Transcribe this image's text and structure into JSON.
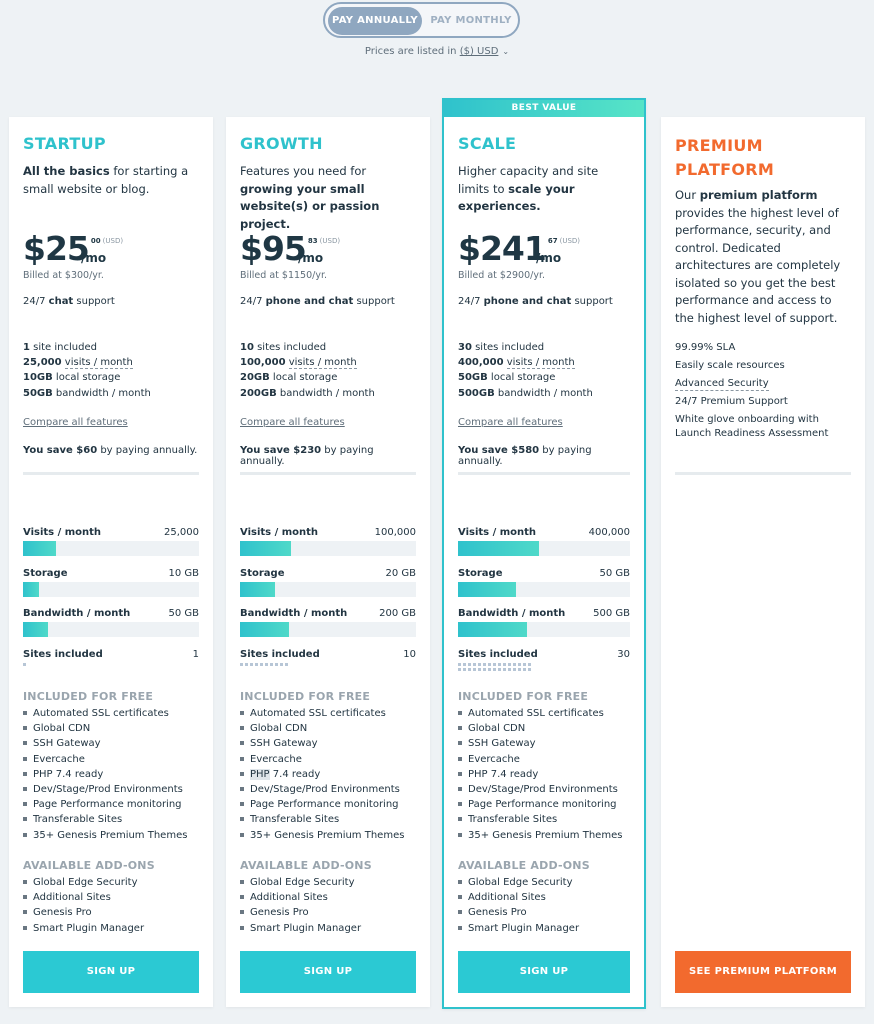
{
  "billing": {
    "annual_label": "PAY ANNUALLY",
    "monthly_label": "PAY MONTHLY",
    "currency_prefix": "Prices are listed in ",
    "currency_link": "($) USD"
  },
  "plans": [
    {
      "name": "STARTUP",
      "desc_bold_start": "All the basics",
      "desc_rest": " for starting a small website or blog.",
      "price_dollars": "$25",
      "price_cents": "00",
      "price_currency": "(USD)",
      "price_period": "/mo",
      "billed": "Billed at $300/yr.",
      "support_pre": "24/7 ",
      "support_bold": "chat",
      "support_post": " support",
      "sites_num": "1",
      "sites_text": " site included",
      "visits_num": "25,000",
      "visits_text": "visits / month",
      "storage_num": "10GB",
      "storage_text": " local storage",
      "bandwidth_num": "50GB",
      "bandwidth_text": " bandwidth / month",
      "compare": "Compare all features",
      "save_bold": "You save $60",
      "save_rest": " by paying annually.",
      "metrics": {
        "visits_label": "Visits / month",
        "visits_value": "25,000",
        "visits_fill": 0.19,
        "storage_label": "Storage",
        "storage_value": "10 GB",
        "storage_fill": 0.09,
        "bandwidth_label": "Bandwidth / month",
        "bandwidth_value": "50 GB",
        "bandwidth_fill": 0.14,
        "sites_label": "Sites included",
        "sites_value": "1",
        "sites_count": 1
      },
      "free_title": "INCLUDED FOR FREE",
      "free_items": [
        "Automated SSL certificates",
        "Global CDN",
        "SSH Gateway",
        "Evercache",
        "PHP 7.4 ready",
        "Dev/Stage/Prod Environments",
        "Page Performance monitoring",
        "Transferable Sites",
        "35+ Genesis Premium Themes"
      ],
      "addons_title": "AVAILABLE ADD-ONS",
      "addon_items": [
        "Global Edge Security",
        "Additional Sites",
        "Genesis Pro",
        "Smart Plugin Manager"
      ],
      "cta": "SIGN UP"
    },
    {
      "name": "GROWTH",
      "desc_pre": "Features you need for ",
      "desc_bold": "growing your small website(s) or passion project.",
      "price_dollars": "$95",
      "price_cents": "83",
      "price_currency": "(USD)",
      "price_period": "/mo",
      "billed": "Billed at $1150/yr.",
      "support_pre": "24/7 ",
      "support_bold": "phone and chat",
      "support_post": " support",
      "sites_num": "10",
      "sites_text": " sites included",
      "visits_num": "100,000",
      "visits_text": "visits / month",
      "storage_num": "20GB",
      "storage_text": " local storage",
      "bandwidth_num": "200GB",
      "bandwidth_text": " bandwidth / month",
      "compare": "Compare all features",
      "save_bold": "You save $230",
      "save_rest": " by paying annually.",
      "metrics": {
        "visits_label": "Visits / month",
        "visits_value": "100,000",
        "visits_fill": 0.29,
        "storage_label": "Storage",
        "storage_value": "20 GB",
        "storage_fill": 0.2,
        "bandwidth_label": "Bandwidth / month",
        "bandwidth_value": "200 GB",
        "bandwidth_fill": 0.28,
        "sites_label": "Sites included",
        "sites_value": "10",
        "sites_count": 10
      },
      "free_title": "INCLUDED FOR FREE",
      "free_items": [
        "Automated SSL certificates",
        "Global CDN",
        "SSH Gateway",
        "Evercache",
        "PHP 7.4 ready",
        "Dev/Stage/Prod Environments",
        "Page Performance monitoring",
        "Transferable Sites",
        "35+ Genesis Premium Themes"
      ],
      "addons_title": "AVAILABLE ADD-ONS",
      "addon_items": [
        "Global Edge Security",
        "Additional Sites",
        "Genesis Pro",
        "Smart Plugin Manager"
      ],
      "cta": "SIGN UP"
    },
    {
      "badge": "BEST VALUE",
      "name": "SCALE",
      "desc_pre": "Higher capacity and site limits to ",
      "desc_bold": "scale your experiences.",
      "price_dollars": "$241",
      "price_cents": "67",
      "price_currency": "(USD)",
      "price_period": "/mo",
      "billed": "Billed at $2900/yr.",
      "support_pre": "24/7 ",
      "support_bold": "phone and chat",
      "support_post": " support",
      "sites_num": "30",
      "sites_text": " sites included",
      "visits_num": "400,000",
      "visits_text": "visits / month",
      "storage_num": "50GB",
      "storage_text": " local storage",
      "bandwidth_num": "500GB",
      "bandwidth_text": " bandwidth / month",
      "compare": "Compare all features",
      "save_bold": "You save $580",
      "save_rest": " by paying annually.",
      "metrics": {
        "visits_label": "Visits / month",
        "visits_value": "400,000",
        "visits_fill": 0.47,
        "storage_label": "Storage",
        "storage_value": "50 GB",
        "storage_fill": 0.34,
        "bandwidth_label": "Bandwidth / month",
        "bandwidth_value": "500 GB",
        "bandwidth_fill": 0.4,
        "sites_label": "Sites included",
        "sites_value": "30",
        "sites_count": 30
      },
      "free_title": "INCLUDED FOR FREE",
      "free_items": [
        "Automated SSL certificates",
        "Global CDN",
        "SSH Gateway",
        "Evercache",
        "PHP 7.4 ready",
        "Dev/Stage/Prod Environments",
        "Page Performance monitoring",
        "Transferable Sites",
        "35+ Genesis Premium Themes"
      ],
      "addons_title": "AVAILABLE ADD-ONS",
      "addon_items": [
        "Global Edge Security",
        "Additional Sites",
        "Genesis Pro",
        "Smart Plugin Manager"
      ],
      "cta": "SIGN UP"
    },
    {
      "name": "PREMIUM PLATFORM",
      "desc_pre": "Our ",
      "desc_bold": "premium platform",
      "desc_post": " provides the highest level of performance, security, and control. Dedicated architectures are completely isolated so you get the best performance and access to the highest level of support.",
      "features": [
        "99.99% SLA",
        "Easily scale resources",
        "Advanced Security",
        "24/7 Premium Support",
        "White glove onboarding with Launch Readiness Assessment"
      ],
      "cta": "SEE PREMIUM PLATFORM"
    }
  ],
  "colors": {
    "teal": "#2fc2cc",
    "orange": "#f26a2e",
    "toggle": "#8fa7c0",
    "background": "#eef2f5"
  }
}
